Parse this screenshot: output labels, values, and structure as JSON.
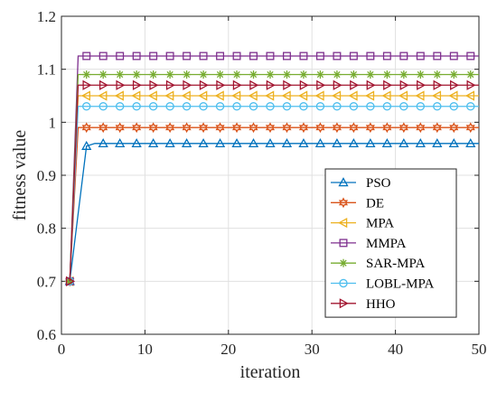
{
  "chart_data": {
    "type": "line",
    "xlabel": "iteration",
    "ylabel": "fitness value",
    "xlim": [
      0,
      50
    ],
    "ylim": [
      0.6,
      1.2
    ],
    "xticks": [
      "0",
      "10",
      "20",
      "30",
      "40",
      "50"
    ],
    "yticks": [
      "0.6",
      "0.7",
      "0.8",
      "0.9",
      "1",
      "1.1",
      "1.2"
    ],
    "grid": true,
    "legend_position": "bottom-right",
    "start": {
      "x": 1,
      "y": 0.7
    },
    "series": [
      {
        "name": "PSO",
        "color": "#0072BD",
        "marker": "triangle-up",
        "x2": 3,
        "y2": 0.955,
        "y": 0.96
      },
      {
        "name": "DE",
        "color": "#D95319",
        "marker": "star6",
        "x2": 2,
        "y2": 0.99,
        "y": 0.99
      },
      {
        "name": "MPA",
        "color": "#EDB120",
        "marker": "triangle-left",
        "x2": 2,
        "y2": 1.05,
        "y": 1.05
      },
      {
        "name": "MMPA",
        "color": "#7E2F8E",
        "marker": "square",
        "x2": 2,
        "y2": 1.125,
        "y": 1.125
      },
      {
        "name": "SAR-MPA",
        "color": "#77AC30",
        "marker": "asterisk",
        "x2": 2,
        "y2": 1.09,
        "y": 1.09
      },
      {
        "name": "LOBL-MPA",
        "color": "#4DBEEE",
        "marker": "circle",
        "x2": 2,
        "y2": 1.03,
        "y": 1.03
      },
      {
        "name": "HHO",
        "color": "#A2142F",
        "marker": "triangle-right",
        "x2": 2,
        "y2": 1.07,
        "y": 1.07
      }
    ]
  }
}
